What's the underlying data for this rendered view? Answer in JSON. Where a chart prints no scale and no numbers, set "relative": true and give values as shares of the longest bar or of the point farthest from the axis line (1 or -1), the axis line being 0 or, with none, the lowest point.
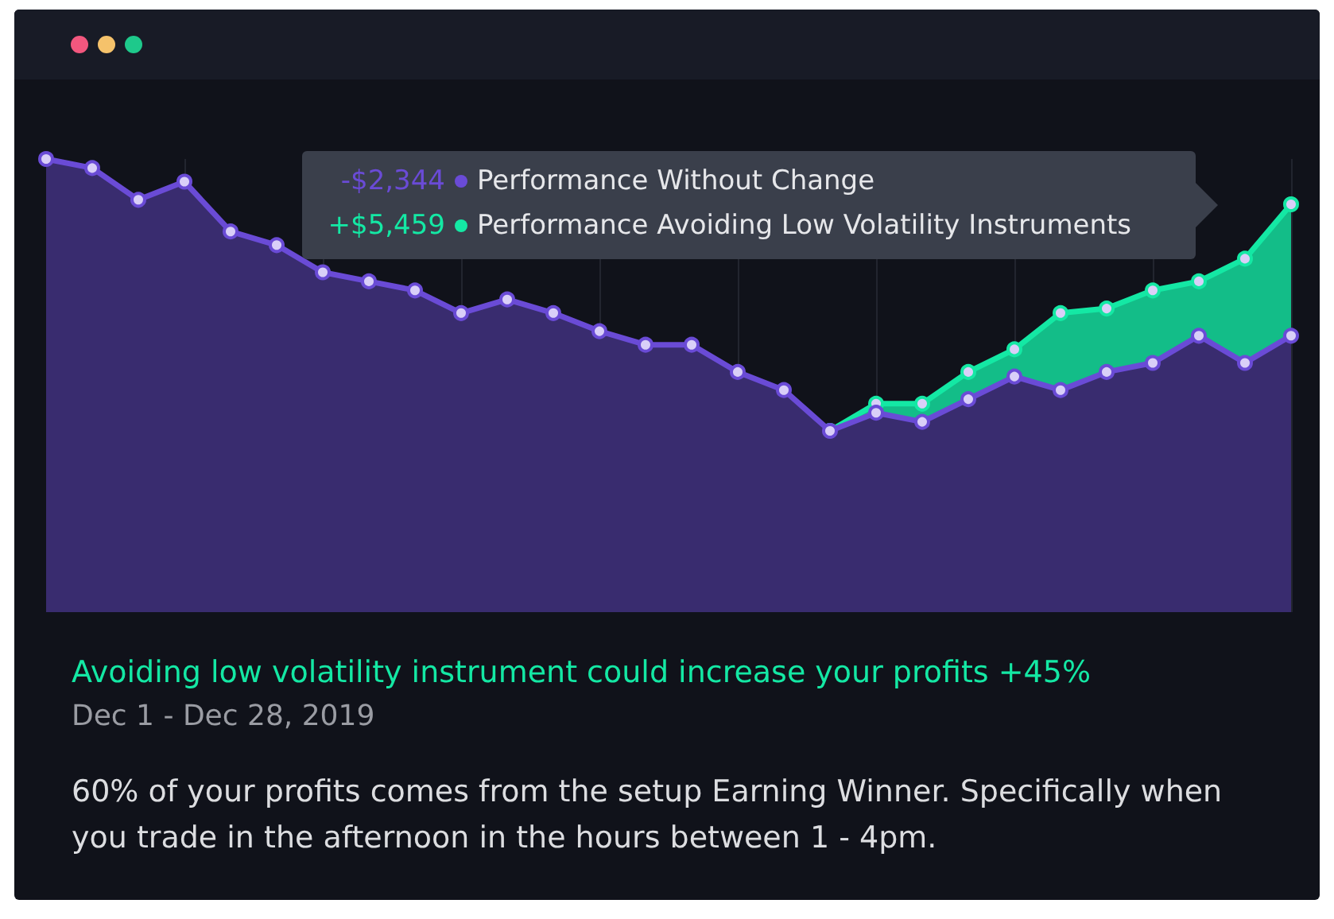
{
  "chart_data": {
    "type": "area",
    "relative": true,
    "title": "Avoiding low volatility instrument could increase your profits +45%",
    "subtitle": "Dec 1 - Dec 28, 2019",
    "annotations": [
      "-$2,344",
      "+$5,459",
      "60% of your profits comes from the setup Earning Winner. Specifically when you trade in the afternoon in the hours between 1 - 4pm."
    ],
    "categories": [
      null,
      null,
      null,
      null,
      null,
      null,
      null,
      null,
      null,
      null,
      null,
      null,
      null,
      null,
      null,
      null,
      null,
      null,
      null,
      null,
      null,
      null,
      null,
      null,
      null,
      null,
      null,
      null
    ],
    "series": [
      {
        "name": "Performance Without Change",
        "color": "#6a4bd6",
        "values": [
          1.0,
          0.98,
          0.91,
          0.95,
          0.84,
          0.81,
          0.75,
          0.73,
          0.71,
          0.66,
          0.69,
          0.66,
          0.62,
          0.59,
          0.59,
          0.53,
          0.49,
          0.4,
          0.44,
          0.42,
          0.47,
          0.52,
          0.49,
          0.53,
          0.55,
          0.61,
          0.55,
          0.61
        ]
      },
      {
        "name": "Performance Avoiding Low Volatility Instruments",
        "color": "#14e8a4",
        "values": [
          null,
          null,
          null,
          null,
          null,
          null,
          null,
          null,
          null,
          null,
          null,
          null,
          null,
          null,
          null,
          null,
          null,
          0.4,
          0.46,
          0.46,
          0.53,
          0.58,
          0.66,
          0.67,
          0.71,
          0.73,
          0.78,
          0.9
        ]
      }
    ],
    "marker": "circle",
    "grid": "x",
    "legend": "top"
  }
}
